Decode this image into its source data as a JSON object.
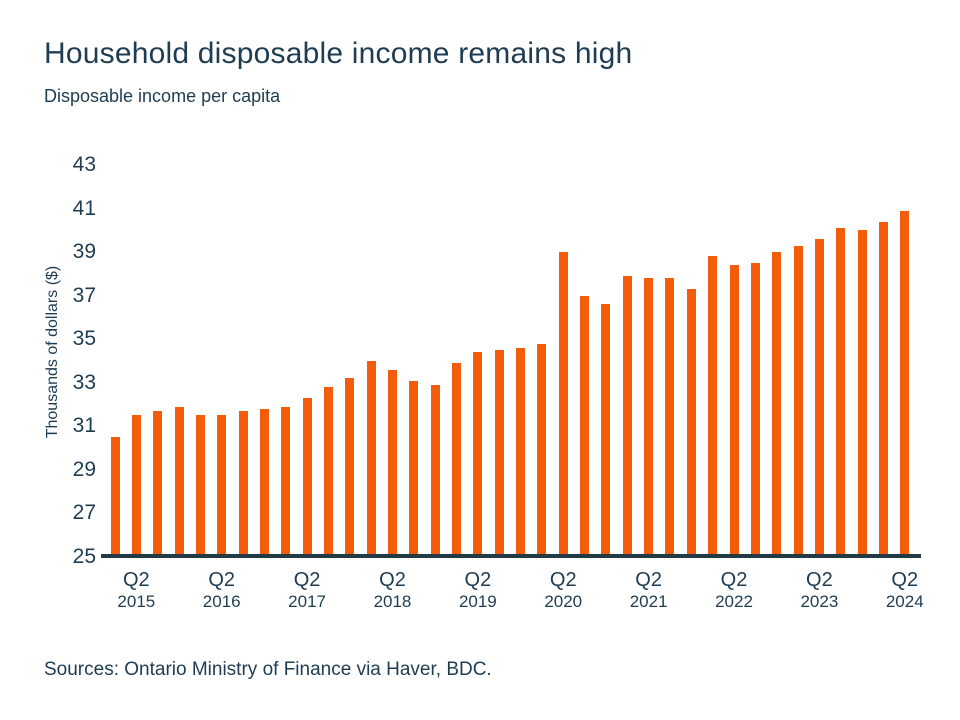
{
  "page": {
    "title": "Household disposable income remains high",
    "subtitle": "Disposable income per capita",
    "sources": "Sources: Ontario Ministry of Finance via Haver, BDC."
  },
  "chart_data": {
    "type": "bar",
    "title": "Household disposable income remains high",
    "subtitle": "Disposable income per capita",
    "ylabel": "Thousands of dollars ($)",
    "xlabel": "",
    "ylim": [
      25,
      43
    ],
    "yticks": [
      25,
      27,
      29,
      31,
      33,
      35,
      37,
      39,
      41,
      43
    ],
    "grid": false,
    "legend": false,
    "bar_color": "#F25C0A",
    "axis_color": "#233946",
    "text_color": "#1E3C52",
    "categories": [
      "Q1 2015",
      "Q2 2015",
      "Q3 2015",
      "Q4 2015",
      "Q1 2016",
      "Q2 2016",
      "Q3 2016",
      "Q4 2016",
      "Q1 2017",
      "Q2 2017",
      "Q3 2017",
      "Q4 2017",
      "Q1 2018",
      "Q2 2018",
      "Q3 2018",
      "Q4 2018",
      "Q1 2019",
      "Q2 2019",
      "Q3 2019",
      "Q4 2019",
      "Q1 2020",
      "Q2 2020",
      "Q3 2020",
      "Q4 2020",
      "Q1 2021",
      "Q2 2021",
      "Q3 2021",
      "Q4 2021",
      "Q1 2022",
      "Q2 2022",
      "Q3 2022",
      "Q4 2022",
      "Q1 2023",
      "Q2 2023",
      "Q3 2023",
      "Q4 2023",
      "Q1 2024",
      "Q2 2024"
    ],
    "values": [
      30.5,
      31.5,
      31.7,
      31.9,
      31.5,
      31.5,
      31.7,
      31.8,
      31.9,
      32.3,
      32.8,
      33.2,
      34.0,
      33.6,
      33.1,
      32.9,
      33.9,
      34.4,
      34.5,
      34.6,
      34.8,
      39.0,
      37.0,
      36.6,
      37.9,
      37.8,
      37.8,
      37.3,
      38.8,
      38.4,
      38.5,
      39.0,
      39.3,
      39.6,
      40.1,
      40.0,
      40.4,
      40.9
    ],
    "x_tick_labels": [
      {
        "quarter": "Q2",
        "year": "2015"
      },
      {
        "quarter": "Q2",
        "year": "2016"
      },
      {
        "quarter": "Q2",
        "year": "2017"
      },
      {
        "quarter": "Q2",
        "year": "2018"
      },
      {
        "quarter": "Q2",
        "year": "2019"
      },
      {
        "quarter": "Q2",
        "year": "2020"
      },
      {
        "quarter": "Q2",
        "year": "2021"
      },
      {
        "quarter": "Q2",
        "year": "2022"
      },
      {
        "quarter": "Q2",
        "year": "2023"
      },
      {
        "quarter": "Q2",
        "year": "2024"
      }
    ],
    "x_tick_bar_indices": [
      1,
      5,
      9,
      13,
      17,
      21,
      25,
      29,
      33,
      37
    ]
  }
}
